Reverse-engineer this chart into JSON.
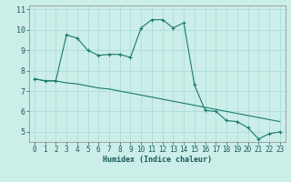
{
  "xlabel": "Humidex (Indice chaleur)",
  "bg_color": "#cceee8",
  "grid_color": "#aadddd",
  "line_color": "#1a7a6a",
  "line1_x": [
    0,
    1,
    2,
    3,
    4,
    5,
    6,
    7,
    8,
    9,
    10,
    11,
    12,
    13,
    14,
    15,
    16,
    17,
    18,
    19,
    20,
    21,
    22,
    23
  ],
  "line1_y": [
    7.6,
    7.5,
    7.5,
    9.75,
    9.6,
    9.0,
    8.75,
    8.8,
    8.8,
    8.65,
    10.1,
    10.5,
    10.5,
    10.1,
    10.35,
    7.3,
    6.05,
    6.0,
    5.55,
    5.5,
    5.2,
    4.65,
    4.9,
    5.0
  ],
  "line2_x": [
    0,
    1,
    2,
    3,
    4,
    5,
    6,
    7,
    8,
    9,
    10,
    11,
    12,
    13,
    14,
    15,
    16,
    17,
    18,
    19,
    20,
    21,
    22,
    23
  ],
  "line2_y": [
    7.6,
    7.5,
    7.5,
    7.4,
    7.35,
    7.25,
    7.15,
    7.1,
    7.0,
    6.9,
    6.8,
    6.7,
    6.6,
    6.5,
    6.4,
    6.3,
    6.2,
    6.1,
    6.0,
    5.9,
    5.8,
    5.7,
    5.6,
    5.5
  ],
  "xlim": [
    -0.5,
    23.5
  ],
  "ylim": [
    4.5,
    11.2
  ],
  "yticks": [
    5,
    6,
    7,
    8,
    9,
    10,
    11
  ],
  "xticks": [
    0,
    1,
    2,
    3,
    4,
    5,
    6,
    7,
    8,
    9,
    10,
    11,
    12,
    13,
    14,
    15,
    16,
    17,
    18,
    19,
    20,
    21,
    22,
    23
  ]
}
